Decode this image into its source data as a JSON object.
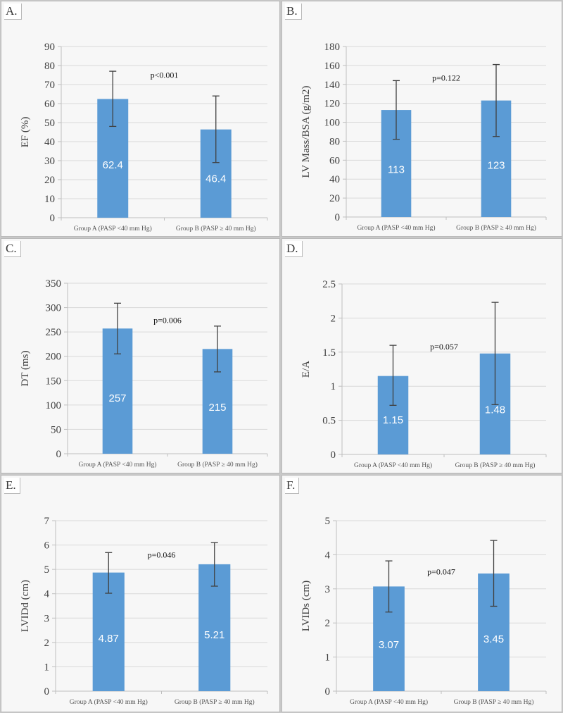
{
  "colors": {
    "bar": "#5b9bd5",
    "error_bar": "#404040",
    "grid": "#d9d9d9",
    "axis": "#bfbfbf"
  },
  "chart_data": [
    {
      "id": "A",
      "panel_label": "A.",
      "type": "bar",
      "ylabel": "EF (%)",
      "categories": [
        "Group A (PASP <40 mm Hg)",
        "Group B (PASP ≥ 40 mm Hg)"
      ],
      "values": [
        62.4,
        46.4
      ],
      "data_labels": [
        "62.4",
        "46.4"
      ],
      "error_bars": [
        {
          "low": 48,
          "high": 77
        },
        {
          "low": 29,
          "high": 64
        }
      ],
      "ylim": [
        0,
        90
      ],
      "yticks": [
        0,
        10,
        20,
        30,
        40,
        50,
        60,
        70,
        80,
        90
      ],
      "ytick_labels": [
        "0",
        "10",
        "20",
        "30",
        "40",
        "50",
        "60",
        "70",
        "80",
        "90"
      ],
      "annotation": "p<0.001",
      "annotation_y": 75,
      "grid": true
    },
    {
      "id": "B",
      "panel_label": "B.",
      "type": "bar",
      "ylabel": "LV Mass/BSA (g/m2)",
      "categories": [
        "Group A (PASP <40 mm Hg)",
        "Group B (PASP ≥ 40 mm Hg)"
      ],
      "values": [
        113,
        123
      ],
      "data_labels": [
        "113",
        "123"
      ],
      "error_bars": [
        {
          "low": 82,
          "high": 144
        },
        {
          "low": 85,
          "high": 161
        }
      ],
      "ylim": [
        0,
        180
      ],
      "yticks": [
        0,
        20,
        40,
        60,
        80,
        100,
        120,
        140,
        160,
        180
      ],
      "ytick_labels": [
        "0",
        "20",
        "40",
        "60",
        "80",
        "100",
        "120",
        "140",
        "160",
        "180"
      ],
      "annotation": "p=0.122",
      "annotation_y": 147,
      "grid": true
    },
    {
      "id": "C",
      "panel_label": "C.",
      "type": "bar",
      "ylabel": "DT (ms)",
      "categories": [
        "Group A (PASP <40 mm Hg)",
        "Group B (PASP ≥ 40 mm Hg)"
      ],
      "values": [
        257,
        215
      ],
      "data_labels": [
        "257",
        "215"
      ],
      "error_bars": [
        {
          "low": 205,
          "high": 309
        },
        {
          "low": 168,
          "high": 262
        }
      ],
      "ylim": [
        0,
        350
      ],
      "yticks": [
        0,
        50,
        100,
        150,
        200,
        250,
        300,
        350
      ],
      "ytick_labels": [
        "0",
        "50",
        "100",
        "150",
        "200",
        "250",
        "300",
        "350"
      ],
      "annotation": "p=0.006",
      "annotation_y": 274,
      "grid": true
    },
    {
      "id": "D",
      "panel_label": "D.",
      "type": "bar",
      "ylabel": "E/A",
      "categories": [
        "Group A (PASP <40 mm Hg)",
        "Group B (PASP ≥ 40 mm Hg)"
      ],
      "values": [
        1.15,
        1.48
      ],
      "data_labels": [
        "1.15",
        "1.48"
      ],
      "error_bars": [
        {
          "low": 0.72,
          "high": 1.6
        },
        {
          "low": 0.73,
          "high": 2.23
        }
      ],
      "ylim": [
        0,
        2.5
      ],
      "yticks": [
        0,
        0.5,
        1,
        1.5,
        2,
        2.5
      ],
      "ytick_labels": [
        "0",
        "0.5",
        "1",
        "1.5",
        "2",
        "2.5"
      ],
      "annotation": "p=0.057",
      "annotation_y": 1.58,
      "grid": true
    },
    {
      "id": "E",
      "panel_label": "E.",
      "type": "bar",
      "ylabel": "LVIDd (cm)",
      "categories": [
        "Group A (PASP <40 mm Hg)",
        "Group B (PASP ≥ 40 mm Hg)"
      ],
      "values": [
        4.87,
        5.21
      ],
      "data_labels": [
        "4.87",
        "5.21"
      ],
      "error_bars": [
        {
          "low": 4.02,
          "high": 5.69
        },
        {
          "low": 4.31,
          "high": 6.1
        }
      ],
      "ylim": [
        0,
        7
      ],
      "yticks": [
        0,
        1,
        2,
        3,
        4,
        5,
        6,
        7
      ],
      "ytick_labels": [
        "0",
        "1",
        "2",
        "3",
        "4",
        "5",
        "6",
        "7"
      ],
      "annotation": "p=0.046",
      "annotation_y": 5.6,
      "grid": true
    },
    {
      "id": "F",
      "panel_label": "F.",
      "type": "bar",
      "ylabel": "LVIDs (cm)",
      "categories": [
        "Group A (PASP <40 mm Hg)",
        "Group B (PASP ≥ 40 mm Hg)"
      ],
      "values": [
        3.07,
        3.45
      ],
      "data_labels": [
        "3.07",
        "3.45"
      ],
      "error_bars": [
        {
          "low": 2.32,
          "high": 3.82
        },
        {
          "low": 2.49,
          "high": 4.42
        }
      ],
      "ylim": [
        0,
        5
      ],
      "yticks": [
        0,
        1,
        2,
        3,
        4,
        5
      ],
      "ytick_labels": [
        "0",
        "1",
        "2",
        "3",
        "4",
        "5"
      ],
      "annotation": "p=0.047",
      "annotation_y": 3.5,
      "grid": true
    }
  ]
}
